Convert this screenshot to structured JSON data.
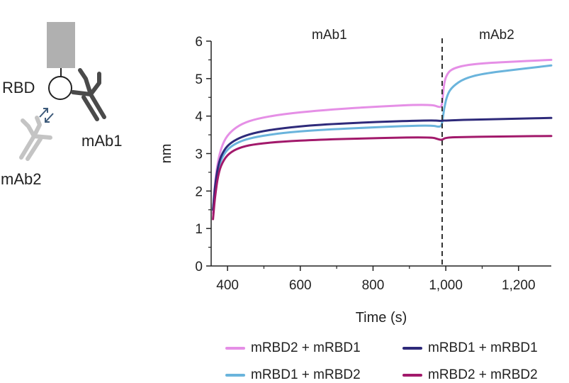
{
  "diagram": {
    "rbd_label": "RBD",
    "mab1_label": "mAb1",
    "mab2_label": "mAb2",
    "icons": [
      "sensor-tip-icon",
      "rbd-circle-icon",
      "antibody-mab1-icon",
      "antibody-mab2-icon",
      "exchange-arrows-icon"
    ],
    "colors": {
      "tip": "#b0b0b0",
      "mab1": "#4a4a4a",
      "mab2": "#c4c4c4",
      "arrows": "#3d5a7a"
    }
  },
  "chart_data": {
    "type": "line",
    "xlabel": "Time (s)",
    "ylabel": "nm",
    "xlim": [
      355,
      1290
    ],
    "ylim": [
      0,
      6
    ],
    "xticks": [
      400,
      600,
      800,
      1000,
      1200
    ],
    "xtick_labels": [
      "400",
      "600",
      "800",
      "1,000",
      "1,200"
    ],
    "yticks": [
      0,
      1,
      2,
      3,
      4,
      5,
      6
    ],
    "ytick_labels": [
      "0",
      "1",
      "2",
      "3",
      "4",
      "5",
      "6"
    ],
    "phase_divider_x": 990,
    "phase_labels": [
      {
        "text": "mAb1",
        "x": 680
      },
      {
        "text": "mAb2",
        "x": 1140
      }
    ],
    "grid": false,
    "legend_position": "bottom",
    "series": [
      {
        "name": "mRBD2 + mRBD1",
        "color": "#e58fe6",
        "x": [
          360,
          365,
          375,
          390,
          410,
          440,
          480,
          550,
          650,
          800,
          960,
          985,
          990,
          995,
          1005,
          1020,
          1050,
          1100,
          1200,
          1290
        ],
        "y": [
          1.4,
          2.2,
          2.9,
          3.35,
          3.6,
          3.8,
          3.93,
          4.05,
          4.15,
          4.25,
          4.32,
          4.22,
          4.3,
          4.9,
          5.15,
          5.27,
          5.35,
          5.41,
          5.46,
          5.5
        ]
      },
      {
        "name": "mRBD1 + mRBD2",
        "color": "#6ab4dc",
        "x": [
          360,
          365,
          375,
          390,
          410,
          440,
          480,
          550,
          650,
          800,
          960,
          985,
          990,
          995,
          1005,
          1020,
          1050,
          1100,
          1200,
          1290
        ],
        "y": [
          1.5,
          2.0,
          2.65,
          3.0,
          3.2,
          3.35,
          3.45,
          3.55,
          3.63,
          3.7,
          3.76,
          3.7,
          3.8,
          4.2,
          4.6,
          4.8,
          5.0,
          5.13,
          5.25,
          5.35
        ]
      },
      {
        "name": "mRBD1 + mRBD1",
        "color": "#2e2a7a",
        "x": [
          360,
          365,
          375,
          390,
          410,
          440,
          480,
          550,
          650,
          800,
          960,
          985,
          990,
          1000,
          1050,
          1100,
          1200,
          1290
        ],
        "y": [
          1.5,
          2.1,
          2.75,
          3.1,
          3.3,
          3.45,
          3.57,
          3.68,
          3.77,
          3.84,
          3.89,
          3.87,
          3.88,
          3.88,
          3.9,
          3.91,
          3.93,
          3.95
        ]
      },
      {
        "name": "mRBD2 + mRBD2",
        "color": "#a2196b",
        "x": [
          360,
          365,
          375,
          390,
          410,
          440,
          480,
          550,
          650,
          800,
          960,
          980,
          990,
          1000,
          1050,
          1100,
          1200,
          1290
        ],
        "y": [
          1.25,
          1.8,
          2.5,
          2.85,
          3.05,
          3.18,
          3.26,
          3.32,
          3.37,
          3.41,
          3.44,
          3.38,
          3.36,
          3.43,
          3.44,
          3.45,
          3.46,
          3.47
        ]
      }
    ]
  }
}
